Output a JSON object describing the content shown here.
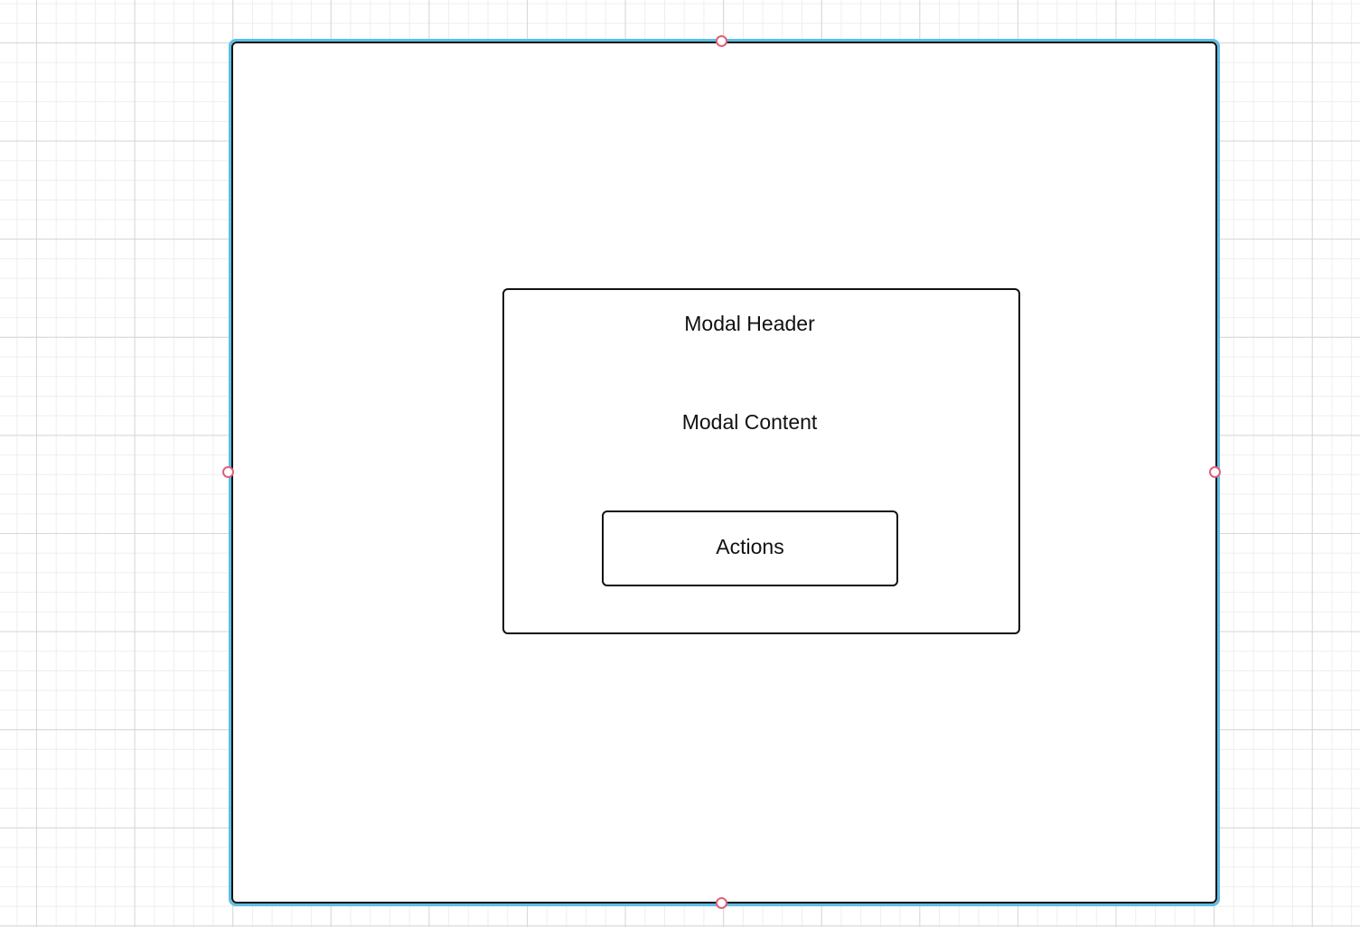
{
  "diagram": {
    "modal_header": "Modal Header",
    "modal_content": "Modal Content",
    "actions_label": "Actions"
  },
  "colors": {
    "selection": "#5bbfe6",
    "handle": "#e0607a",
    "stroke": "#111111"
  }
}
